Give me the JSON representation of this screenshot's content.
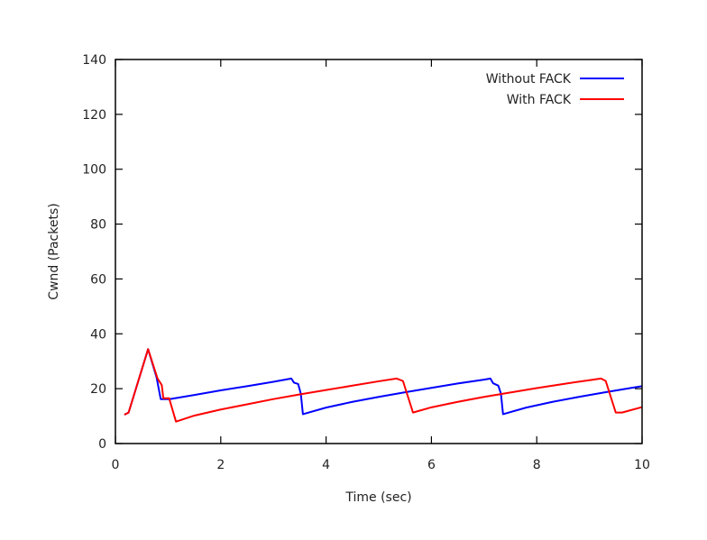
{
  "chart_data": {
    "type": "line",
    "title": "",
    "xlabel": "Time (sec)",
    "ylabel": "Cwnd (Packets)",
    "xlim": [
      0,
      10
    ],
    "ylim": [
      0,
      140
    ],
    "xticks": [
      0,
      2,
      4,
      6,
      8,
      10
    ],
    "yticks": [
      0,
      20,
      40,
      60,
      80,
      100,
      120,
      140
    ],
    "grid": false,
    "legend_placement": "top-right",
    "series": [
      {
        "name": "Without FACK",
        "color": "#0000ff",
        "points": [
          [
            0.17,
            10.5
          ],
          [
            0.25,
            11.3
          ],
          [
            0.62,
            34.4
          ],
          [
            0.78,
            24.2
          ],
          [
            0.86,
            16.2
          ],
          [
            1.03,
            16.2
          ],
          [
            1.5,
            17.7
          ],
          [
            2.0,
            19.4
          ],
          [
            2.5,
            20.9
          ],
          [
            3.0,
            22.5
          ],
          [
            3.34,
            23.7
          ],
          [
            3.39,
            22.2
          ],
          [
            3.47,
            21.7
          ],
          [
            3.52,
            18.2
          ],
          [
            3.56,
            10.7
          ],
          [
            4.0,
            13.1
          ],
          [
            4.5,
            15.2
          ],
          [
            5.0,
            17.0
          ],
          [
            5.5,
            18.7
          ],
          [
            6.0,
            20.3
          ],
          [
            6.5,
            21.9
          ],
          [
            7.0,
            23.3
          ],
          [
            7.12,
            23.7
          ],
          [
            7.17,
            22.0
          ],
          [
            7.27,
            21.1
          ],
          [
            7.32,
            18.2
          ],
          [
            7.36,
            10.7
          ],
          [
            7.8,
            13.1
          ],
          [
            8.3,
            15.2
          ],
          [
            8.8,
            17.0
          ],
          [
            9.3,
            18.7
          ],
          [
            9.8,
            20.3
          ],
          [
            10.0,
            20.9
          ]
        ]
      },
      {
        "name": "With FACK",
        "color": "#ff0000",
        "points": [
          [
            0.17,
            10.5
          ],
          [
            0.25,
            11.3
          ],
          [
            0.62,
            34.4
          ],
          [
            0.8,
            23.7
          ],
          [
            0.88,
            21.3
          ],
          [
            0.91,
            16.5
          ],
          [
            1.02,
            16.5
          ],
          [
            1.15,
            8.0
          ],
          [
            1.5,
            10.2
          ],
          [
            2.0,
            12.4
          ],
          [
            2.5,
            14.3
          ],
          [
            3.0,
            16.2
          ],
          [
            3.5,
            17.9
          ],
          [
            4.0,
            19.5
          ],
          [
            4.5,
            21.1
          ],
          [
            5.0,
            22.7
          ],
          [
            5.34,
            23.7
          ],
          [
            5.46,
            22.8
          ],
          [
            5.65,
            11.3
          ],
          [
            6.0,
            13.2
          ],
          [
            6.5,
            15.2
          ],
          [
            7.0,
            17.0
          ],
          [
            7.5,
            18.6
          ],
          [
            8.0,
            20.2
          ],
          [
            8.5,
            21.7
          ],
          [
            9.0,
            23.1
          ],
          [
            9.22,
            23.7
          ],
          [
            9.31,
            22.8
          ],
          [
            9.5,
            11.3
          ],
          [
            9.62,
            11.3
          ],
          [
            10.0,
            13.3
          ]
        ]
      }
    ]
  }
}
